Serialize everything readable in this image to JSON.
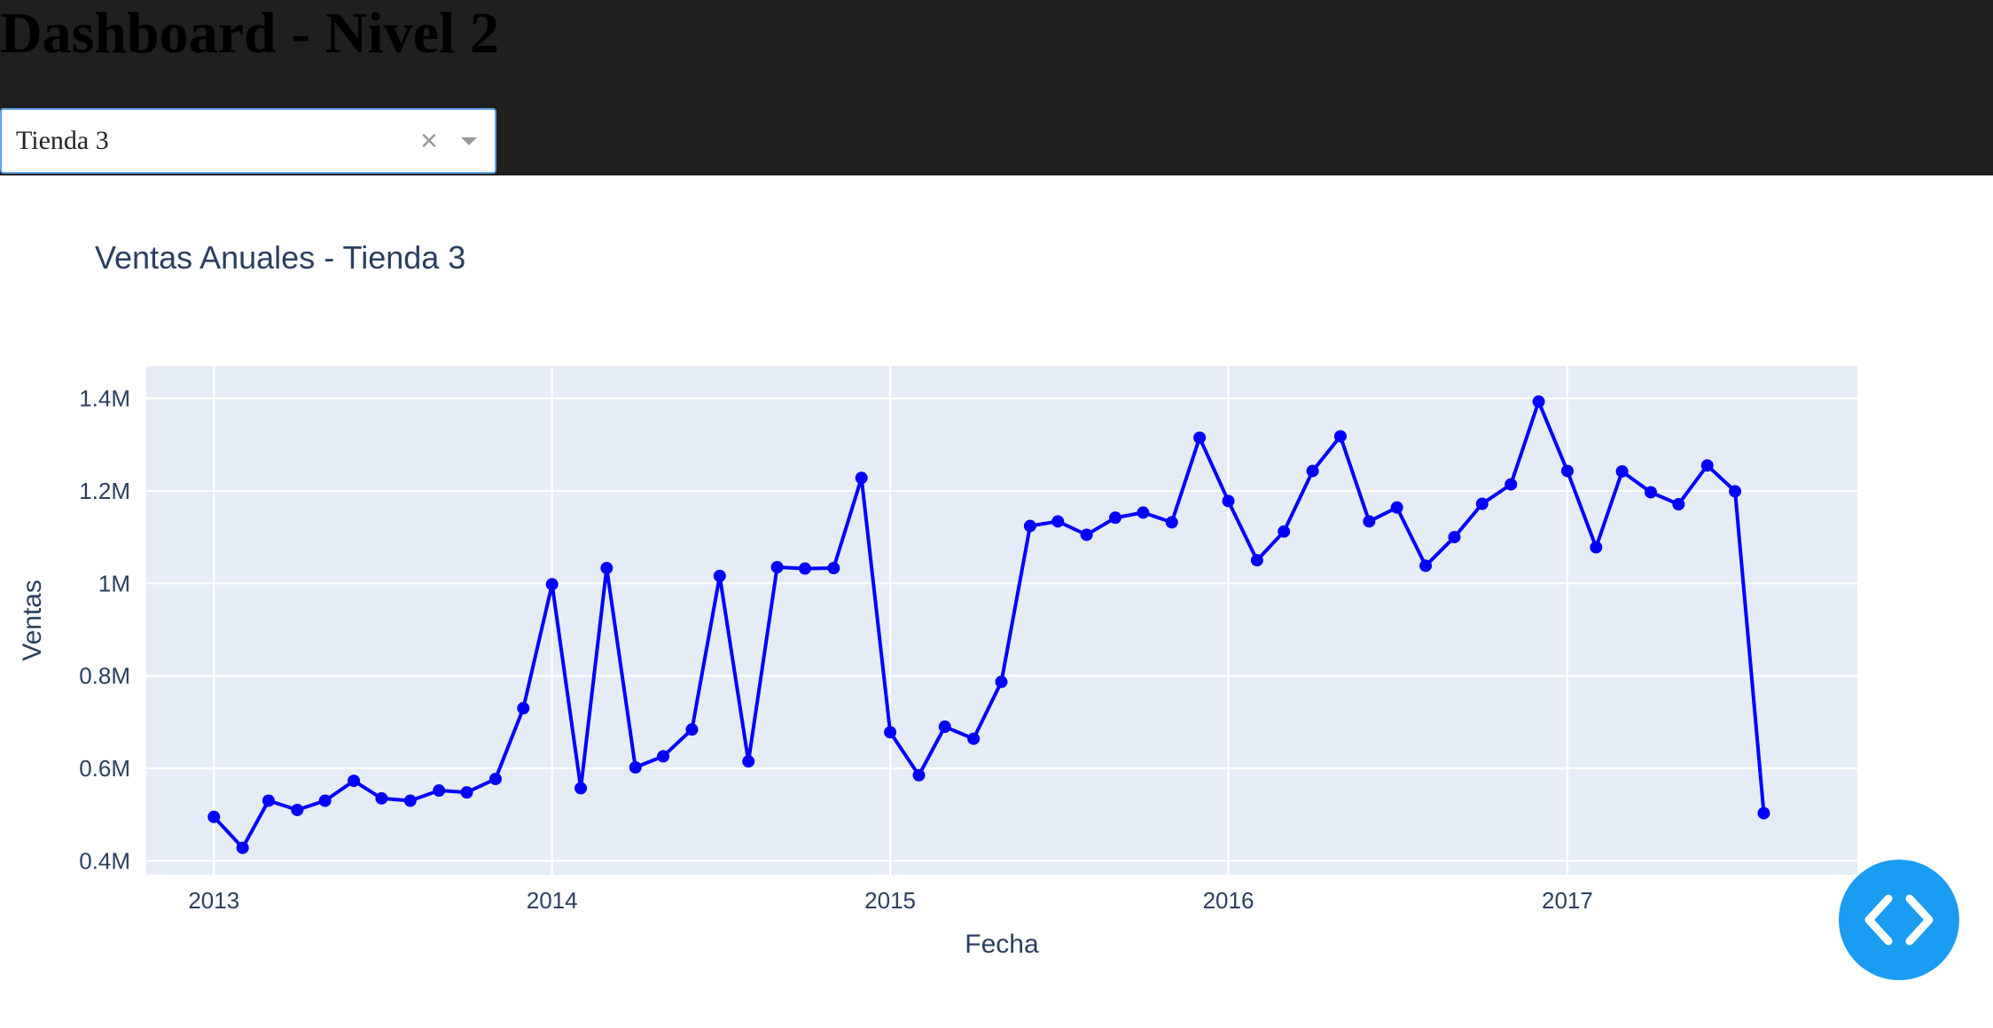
{
  "header": {
    "title": "Dashboard - Nivel 2",
    "background": "#1f1f1f"
  },
  "dropdown": {
    "selected": "Tienda 3",
    "clear_symbol": "×"
  },
  "chart_data": {
    "type": "line",
    "title": "Ventas Anuales - Tienda 3",
    "xlabel": "Fecha",
    "ylabel": "Ventas",
    "line_color": "#0000ff",
    "plot_background": "#e5ecf6",
    "grid": true,
    "markers": true,
    "x_tick_labels": [
      "2013",
      "2014",
      "2015",
      "2016",
      "2017"
    ],
    "y_tick_labels": [
      "0.4M",
      "0.6M",
      "0.8M",
      "1M",
      "1.2M",
      "1.4M"
    ],
    "y_ticks": [
      400000,
      600000,
      800000,
      1000000,
      1200000,
      1400000
    ],
    "ylim": [
      370000,
      1470000
    ],
    "xlim": [
      "2012-10-20",
      "2017-11-10"
    ],
    "x": [
      "2013-01",
      "2013-02",
      "2013-03",
      "2013-04",
      "2013-05",
      "2013-06",
      "2013-07",
      "2013-08",
      "2013-09",
      "2013-10",
      "2013-11",
      "2013-12",
      "2014-01",
      "2014-02",
      "2014-03",
      "2014-04",
      "2014-05",
      "2014-06",
      "2014-07",
      "2014-08",
      "2014-09",
      "2014-10",
      "2014-11",
      "2014-12",
      "2015-01",
      "2015-02",
      "2015-03",
      "2015-04",
      "2015-05",
      "2015-06",
      "2015-07",
      "2015-08",
      "2015-09",
      "2015-10",
      "2015-11",
      "2015-12",
      "2016-01",
      "2016-02",
      "2016-03",
      "2016-04",
      "2016-05",
      "2016-06",
      "2016-07",
      "2016-08",
      "2016-09",
      "2016-10",
      "2016-11",
      "2016-12",
      "2017-01",
      "2017-02",
      "2017-03",
      "2017-04",
      "2017-05",
      "2017-06",
      "2017-07",
      "2017-08"
    ],
    "values": [
      495000,
      428000,
      530000,
      510000,
      530000,
      573000,
      535000,
      530000,
      552000,
      548000,
      577000,
      730000,
      998000,
      557000,
      1033000,
      602000,
      626000,
      684000,
      1016000,
      615000,
      1035000,
      1032000,
      1033000,
      1228000,
      678000,
      585000,
      690000,
      664000,
      787000,
      1124000,
      1134000,
      1105000,
      1142000,
      1153000,
      1132000,
      1315000,
      1178000,
      1050000,
      1112000,
      1243000,
      1318000,
      1134000,
      1164000,
      1038000,
      1100000,
      1172000,
      1214000,
      1393000,
      1243000,
      1078000,
      1242000,
      1197000,
      1171000,
      1255000,
      1199000,
      503000
    ]
  },
  "fab": {
    "icon": "code-icon",
    "color": "#1a9cf3"
  }
}
